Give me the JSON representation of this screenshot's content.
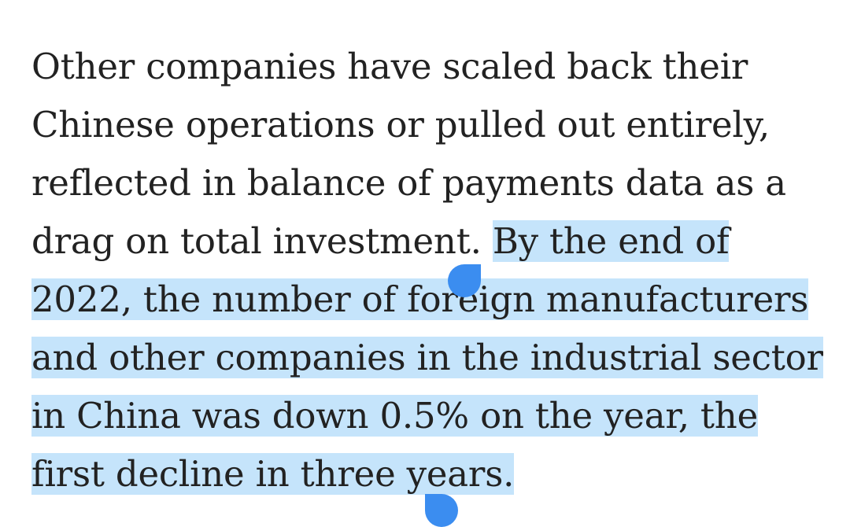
{
  "article": {
    "text_before_selection": "Other companies have scaled back their Chinese operations or pulled out entirely, reflected in balance of payments data as a drag on total investment. ",
    "selected_text": "By the end of 2022, the number of foreign manufacturers and other companies in the industrial sector in China was down 0.5% on the year, the first decline in three years."
  },
  "selection": {
    "highlight_color": "#c5e4fb",
    "handle_color": "#3b8df0"
  }
}
